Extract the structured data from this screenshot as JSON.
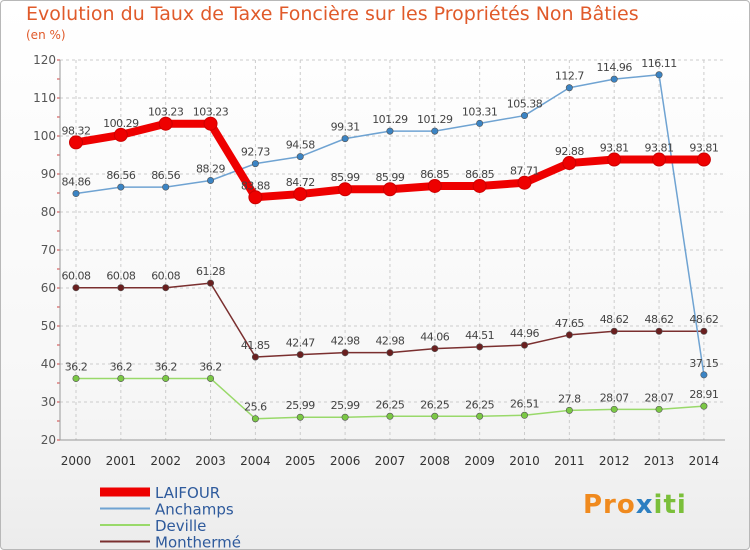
{
  "header": {
    "title": "Evolution du Taux de Taxe Foncière sur les Propriétés Non Bâties",
    "unit": "(en %)"
  },
  "logo": {
    "part1": "Pro",
    "part2": "x",
    "part3": "iti"
  },
  "chart_data": {
    "type": "line",
    "title": "Evolution du Taux de Taxe Foncière sur les Propriétés Non Bâties",
    "ylabel": "(en %)",
    "xlabel": "",
    "ylim": [
      20,
      120
    ],
    "yticks": [
      20,
      30,
      40,
      50,
      60,
      70,
      80,
      90,
      100,
      110,
      120
    ],
    "grid": true,
    "legend": "bottom-left",
    "x": [
      "2000",
      "2001",
      "2002",
      "2003",
      "2004",
      "2005",
      "2006",
      "2007",
      "2008",
      "2009",
      "2010",
      "2011",
      "2012",
      "2013",
      "2014"
    ],
    "series": [
      {
        "name": "LAIFOUR",
        "color": "#ee0000",
        "marker": "#ee0000",
        "values": [
          98.32,
          100.29,
          103.23,
          103.23,
          83.88,
          84.72,
          85.99,
          85.99,
          86.85,
          86.85,
          87.71,
          92.88,
          93.81,
          93.81,
          93.81
        ],
        "labels": [
          "98.32",
          "100.29",
          "103.23",
          "103.23",
          "83.88",
          "84.72",
          "85.99",
          "85.99",
          "86.85",
          "86.85",
          "87.71",
          "92.88",
          "93.81",
          "93.81",
          "93.81"
        ]
      },
      {
        "name": "Anchamps",
        "color": "#6fa3d2",
        "marker": "#3b84c4",
        "values": [
          84.86,
          86.56,
          86.56,
          88.29,
          92.73,
          94.58,
          99.31,
          101.29,
          101.29,
          103.31,
          105.38,
          112.7,
          114.96,
          116.11,
          37.15
        ],
        "labels": [
          "84.86",
          "86.56",
          "86.56",
          "88.29",
          "92.73",
          "94.58",
          "99.31",
          "101.29",
          "101.29",
          "103.31",
          "105.38",
          "112.7",
          "114.96",
          "116.11",
          "37.15"
        ]
      },
      {
        "name": "Deville",
        "color": "#99d96a",
        "marker": "#7bc845",
        "values": [
          36.2,
          36.2,
          36.2,
          36.2,
          25.6,
          25.99,
          25.99,
          26.25,
          26.25,
          26.25,
          26.51,
          27.8,
          28.07,
          28.07,
          28.91
        ],
        "labels": [
          "36.2",
          "36.2",
          "36.2",
          "36.2",
          "25.6",
          "25.99",
          "25.99",
          "26.25",
          "26.25",
          "26.25",
          "26.51",
          "27.8",
          "28.07",
          "28.07",
          "28.91"
        ]
      },
      {
        "name": "Monthermé",
        "color": "#7a2f2f",
        "marker": "#6a1f1f",
        "values": [
          60.08,
          60.08,
          60.08,
          61.28,
          41.85,
          42.47,
          42.98,
          42.98,
          44.06,
          44.51,
          44.96,
          47.65,
          48.62,
          48.62,
          48.62
        ],
        "labels": [
          "60.08",
          "60.08",
          "60.08",
          "61.28",
          "41.85",
          "42.47",
          "42.98",
          "42.98",
          "44.06",
          "44.51",
          "44.96",
          "47.65",
          "48.62",
          "48.62",
          "48.62"
        ]
      }
    ]
  }
}
